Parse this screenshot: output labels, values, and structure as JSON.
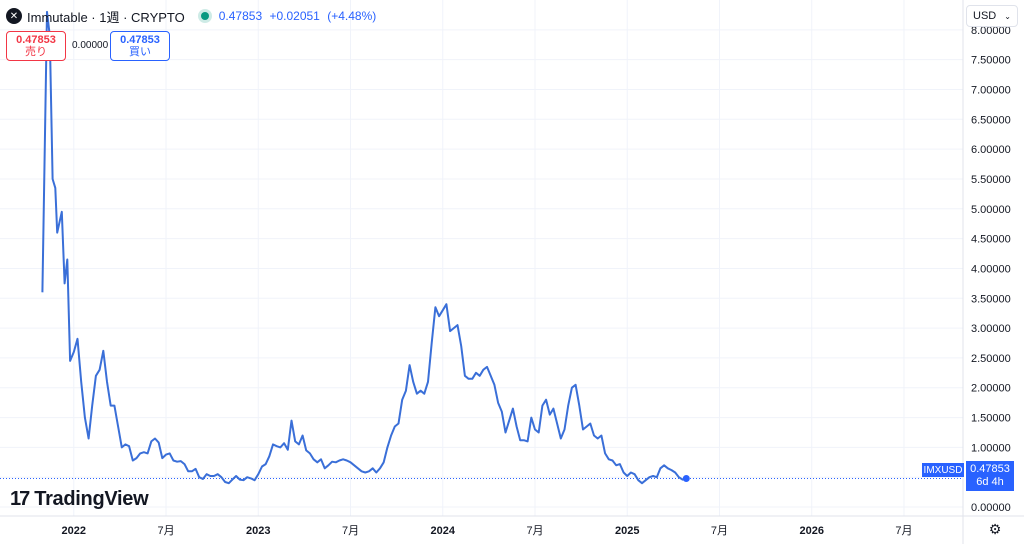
{
  "header": {
    "logo_glyph": "✕",
    "title": "Immutable · 1週 · CRYPTO",
    "last": "0.47853",
    "change": "+0.02051",
    "change_pct": "(+4.48%)"
  },
  "trade": {
    "sell_price": "0.47853",
    "sell_label": "売り",
    "buy_price": "0.47853",
    "buy_label": "買い",
    "spread": "0.00000"
  },
  "currency": "USD",
  "branding": "TradingView",
  "last_price": {
    "symbol": "IMXUSD",
    "value": "0.47853",
    "countdown": "6d 4h"
  },
  "colors": {
    "line": "#3a6fd8",
    "accent": "#2962ff",
    "grid": "#f0f3fa",
    "sell": "#f23645"
  },
  "chart_data": {
    "type": "line",
    "title": "",
    "xlabel": "",
    "ylabel": "",
    "ylim": [
      -0.15,
      8.5
    ],
    "xlim": [
      2021.6,
      2026.82
    ],
    "y_ticks": [
      "0.00000",
      "0.50000",
      "1.00000",
      "1.50000",
      "2.00000",
      "2.50000",
      "3.00000",
      "3.50000",
      "4.00000",
      "4.50000",
      "5.00000",
      "5.50000",
      "6.00000",
      "6.50000",
      "7.00000",
      "7.50000",
      "8.00000"
    ],
    "x_ticks": [
      {
        "x": 2022.0,
        "label": "2022",
        "bold": true
      },
      {
        "x": 2022.5,
        "label": "7月",
        "bold": false
      },
      {
        "x": 2023.0,
        "label": "2023",
        "bold": true
      },
      {
        "x": 2023.5,
        "label": "7月",
        "bold": false
      },
      {
        "x": 2024.0,
        "label": "2024",
        "bold": true
      },
      {
        "x": 2024.5,
        "label": "7月",
        "bold": false
      },
      {
        "x": 2025.0,
        "label": "2025",
        "bold": true
      },
      {
        "x": 2025.5,
        "label": "7月",
        "bold": false
      },
      {
        "x": 2026.0,
        "label": "2026",
        "bold": true
      },
      {
        "x": 2026.5,
        "label": "7月",
        "bold": false
      }
    ],
    "grid": true,
    "series": [
      {
        "name": "IMXUSD",
        "points": [
          [
            2021.83,
            3.6
          ],
          [
            2021.855,
            8.3
          ],
          [
            2021.87,
            7.9
          ],
          [
            2021.885,
            5.5
          ],
          [
            2021.9,
            5.35
          ],
          [
            2021.91,
            4.6
          ],
          [
            2021.935,
            4.95
          ],
          [
            2021.95,
            3.75
          ],
          [
            2021.965,
            4.15
          ],
          [
            2021.98,
            2.45
          ],
          [
            2022.0,
            2.6
          ],
          [
            2022.02,
            2.82
          ],
          [
            2022.04,
            2.1
          ],
          [
            2022.06,
            1.5
          ],
          [
            2022.08,
            1.15
          ],
          [
            2022.1,
            1.7
          ],
          [
            2022.12,
            2.2
          ],
          [
            2022.14,
            2.3
          ],
          [
            2022.16,
            2.62
          ],
          [
            2022.18,
            2.1
          ],
          [
            2022.2,
            1.7
          ],
          [
            2022.22,
            1.7
          ],
          [
            2022.24,
            1.35
          ],
          [
            2022.26,
            1.0
          ],
          [
            2022.28,
            1.05
          ],
          [
            2022.3,
            1.02
          ],
          [
            2022.32,
            0.78
          ],
          [
            2022.34,
            0.82
          ],
          [
            2022.36,
            0.9
          ],
          [
            2022.38,
            0.92
          ],
          [
            2022.4,
            0.9
          ],
          [
            2022.42,
            1.1
          ],
          [
            2022.44,
            1.15
          ],
          [
            2022.46,
            1.08
          ],
          [
            2022.48,
            0.82
          ],
          [
            2022.5,
            0.88
          ],
          [
            2022.52,
            0.9
          ],
          [
            2022.54,
            0.78
          ],
          [
            2022.56,
            0.76
          ],
          [
            2022.58,
            0.77
          ],
          [
            2022.6,
            0.72
          ],
          [
            2022.62,
            0.6
          ],
          [
            2022.64,
            0.6
          ],
          [
            2022.66,
            0.64
          ],
          [
            2022.68,
            0.5
          ],
          [
            2022.7,
            0.47
          ],
          [
            2022.72,
            0.55
          ],
          [
            2022.74,
            0.52
          ],
          [
            2022.76,
            0.52
          ],
          [
            2022.78,
            0.55
          ],
          [
            2022.8,
            0.5
          ],
          [
            2022.82,
            0.42
          ],
          [
            2022.84,
            0.4
          ],
          [
            2022.86,
            0.46
          ],
          [
            2022.88,
            0.52
          ],
          [
            2022.9,
            0.46
          ],
          [
            2022.92,
            0.45
          ],
          [
            2022.94,
            0.5
          ],
          [
            2022.96,
            0.48
          ],
          [
            2022.98,
            0.45
          ],
          [
            2023.0,
            0.55
          ],
          [
            2023.02,
            0.68
          ],
          [
            2023.04,
            0.72
          ],
          [
            2023.06,
            0.85
          ],
          [
            2023.08,
            1.05
          ],
          [
            2023.1,
            1.02
          ],
          [
            2023.12,
            1.0
          ],
          [
            2023.14,
            1.07
          ],
          [
            2023.16,
            0.96
          ],
          [
            2023.18,
            1.45
          ],
          [
            2023.2,
            1.1
          ],
          [
            2023.22,
            1.05
          ],
          [
            2023.24,
            1.2
          ],
          [
            2023.26,
            0.95
          ],
          [
            2023.28,
            0.9
          ],
          [
            2023.3,
            0.8
          ],
          [
            2023.32,
            0.75
          ],
          [
            2023.34,
            0.8
          ],
          [
            2023.36,
            0.65
          ],
          [
            2023.38,
            0.7
          ],
          [
            2023.4,
            0.76
          ],
          [
            2023.42,
            0.75
          ],
          [
            2023.44,
            0.78
          ],
          [
            2023.46,
            0.8
          ],
          [
            2023.48,
            0.78
          ],
          [
            2023.5,
            0.75
          ],
          [
            2023.52,
            0.7
          ],
          [
            2023.54,
            0.65
          ],
          [
            2023.56,
            0.6
          ],
          [
            2023.58,
            0.58
          ],
          [
            2023.6,
            0.6
          ],
          [
            2023.62,
            0.65
          ],
          [
            2023.64,
            0.58
          ],
          [
            2023.66,
            0.65
          ],
          [
            2023.68,
            0.75
          ],
          [
            2023.7,
            1.0
          ],
          [
            2023.72,
            1.2
          ],
          [
            2023.74,
            1.35
          ],
          [
            2023.76,
            1.4
          ],
          [
            2023.78,
            1.8
          ],
          [
            2023.8,
            1.95
          ],
          [
            2023.82,
            2.38
          ],
          [
            2023.84,
            2.1
          ],
          [
            2023.86,
            1.9
          ],
          [
            2023.88,
            1.95
          ],
          [
            2023.9,
            1.9
          ],
          [
            2023.92,
            2.1
          ],
          [
            2023.94,
            2.75
          ],
          [
            2023.96,
            3.35
          ],
          [
            2023.98,
            3.2
          ],
          [
            2024.0,
            3.3
          ],
          [
            2024.02,
            3.4
          ],
          [
            2024.04,
            2.95
          ],
          [
            2024.06,
            3.0
          ],
          [
            2024.08,
            3.05
          ],
          [
            2024.1,
            2.7
          ],
          [
            2024.12,
            2.2
          ],
          [
            2024.14,
            2.15
          ],
          [
            2024.16,
            2.15
          ],
          [
            2024.18,
            2.25
          ],
          [
            2024.2,
            2.2
          ],
          [
            2024.22,
            2.3
          ],
          [
            2024.24,
            2.35
          ],
          [
            2024.26,
            2.2
          ],
          [
            2024.28,
            2.05
          ],
          [
            2024.3,
            1.75
          ],
          [
            2024.32,
            1.6
          ],
          [
            2024.34,
            1.25
          ],
          [
            2024.36,
            1.45
          ],
          [
            2024.38,
            1.65
          ],
          [
            2024.4,
            1.35
          ],
          [
            2024.42,
            1.12
          ],
          [
            2024.44,
            1.12
          ],
          [
            2024.46,
            1.1
          ],
          [
            2024.48,
            1.5
          ],
          [
            2024.5,
            1.3
          ],
          [
            2024.52,
            1.25
          ],
          [
            2024.54,
            1.7
          ],
          [
            2024.56,
            1.8
          ],
          [
            2024.58,
            1.55
          ],
          [
            2024.6,
            1.65
          ],
          [
            2024.62,
            1.4
          ],
          [
            2024.64,
            1.15
          ],
          [
            2024.66,
            1.3
          ],
          [
            2024.68,
            1.7
          ],
          [
            2024.7,
            2.0
          ],
          [
            2024.72,
            2.05
          ],
          [
            2024.74,
            1.7
          ],
          [
            2024.76,
            1.3
          ],
          [
            2024.78,
            1.35
          ],
          [
            2024.8,
            1.4
          ],
          [
            2024.82,
            1.2
          ],
          [
            2024.84,
            1.15
          ],
          [
            2024.86,
            1.2
          ],
          [
            2024.88,
            0.9
          ],
          [
            2024.9,
            0.8
          ],
          [
            2024.92,
            0.78
          ],
          [
            2024.94,
            0.7
          ],
          [
            2024.96,
            0.72
          ],
          [
            2024.98,
            0.58
          ],
          [
            2025.0,
            0.52
          ],
          [
            2025.02,
            0.58
          ],
          [
            2025.04,
            0.55
          ],
          [
            2025.06,
            0.45
          ],
          [
            2025.08,
            0.4
          ],
          [
            2025.1,
            0.45
          ],
          [
            2025.12,
            0.5
          ],
          [
            2025.14,
            0.52
          ],
          [
            2025.16,
            0.5
          ],
          [
            2025.18,
            0.65
          ],
          [
            2025.2,
            0.7
          ],
          [
            2025.22,
            0.65
          ],
          [
            2025.24,
            0.62
          ],
          [
            2025.26,
            0.58
          ],
          [
            2025.28,
            0.5
          ],
          [
            2025.3,
            0.46
          ],
          [
            2025.32,
            0.48
          ]
        ]
      }
    ],
    "last_point": [
      2025.32,
      0.47853
    ]
  }
}
